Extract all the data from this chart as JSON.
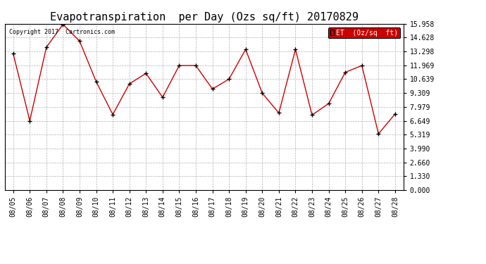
{
  "title": "Evapotranspiration  per Day (Ozs sq/ft) 20170829",
  "copyright": "Copyright 2017  Cartronics.com",
  "legend_label": "ET  (0z/sq  ft)",
  "dates": [
    "08/05",
    "08/06",
    "08/07",
    "08/08",
    "08/09",
    "08/10",
    "08/11",
    "08/12",
    "08/13",
    "08/14",
    "08/15",
    "08/16",
    "08/17",
    "08/18",
    "08/19",
    "08/20",
    "08/21",
    "08/22",
    "08/23",
    "08/24",
    "08/25",
    "08/26",
    "08/27",
    "08/28"
  ],
  "values": [
    13.1,
    6.65,
    13.7,
    15.9,
    14.3,
    10.4,
    7.25,
    10.2,
    11.2,
    8.9,
    11.95,
    11.95,
    9.7,
    10.65,
    13.5,
    9.3,
    7.4,
    13.5,
    7.2,
    8.3,
    11.3,
    11.95,
    5.4,
    7.3
  ],
  "yticks": [
    0.0,
    1.33,
    2.66,
    3.99,
    5.319,
    6.649,
    7.979,
    9.309,
    10.639,
    11.969,
    13.298,
    14.628,
    15.958
  ],
  "ylim": [
    0.0,
    15.958
  ],
  "line_color": "#cc0000",
  "marker_color": "#000000",
  "bg_color": "#ffffff",
  "grid_color": "#aaaaaa",
  "title_fontsize": 11,
  "tick_fontsize": 7,
  "copyright_fontsize": 6,
  "legend_fontsize": 7,
  "legend_bg": "#cc0000",
  "legend_text_color": "#ffffff"
}
